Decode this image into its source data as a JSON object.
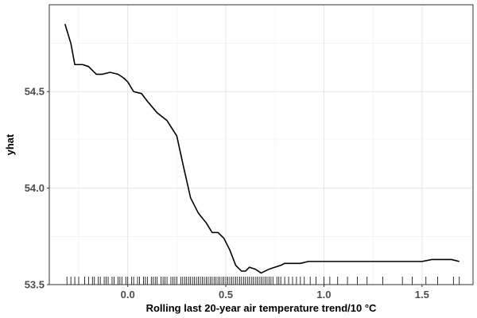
{
  "chart_data": {
    "type": "line",
    "xlabel": "Rolling last 20-year air temperature trend/10 °C",
    "ylabel": "yhat",
    "xlim": [
      -0.4,
      1.76
    ],
    "ylim": [
      53.5,
      54.95
    ],
    "x_ticks": [
      0.0,
      0.5,
      1.0,
      1.5
    ],
    "x_tick_labels": [
      "0.0",
      "0.5",
      "1.0",
      "1.5"
    ],
    "y_ticks": [
      53.5,
      54.0,
      54.5
    ],
    "y_tick_labels": [
      "53.5",
      "54.0",
      "54.5"
    ],
    "grid": true,
    "rug": true,
    "series": [
      {
        "x": [
          -0.32,
          -0.29,
          -0.27,
          -0.23,
          -0.2,
          -0.16,
          -0.13,
          -0.09,
          -0.05,
          -0.02,
          0.0,
          0.03,
          0.07,
          0.1,
          0.15,
          0.2,
          0.25,
          0.28,
          0.32,
          0.36,
          0.4,
          0.43,
          0.46,
          0.49,
          0.52,
          0.55,
          0.58,
          0.6,
          0.62,
          0.65,
          0.68,
          0.72,
          0.75,
          0.78,
          0.8,
          0.85,
          0.88,
          0.92,
          1.0,
          1.1,
          1.2,
          1.3,
          1.4,
          1.5,
          1.55,
          1.6,
          1.65,
          1.69
        ],
        "y": [
          54.85,
          54.75,
          54.64,
          54.64,
          54.63,
          54.59,
          54.59,
          54.6,
          54.59,
          54.57,
          54.55,
          54.5,
          54.49,
          54.45,
          54.39,
          54.35,
          54.27,
          54.13,
          53.95,
          53.87,
          53.82,
          53.77,
          53.77,
          53.74,
          53.68,
          53.6,
          53.57,
          53.57,
          53.59,
          53.58,
          53.56,
          53.58,
          53.59,
          53.6,
          53.61,
          53.61,
          53.61,
          53.62,
          53.62,
          53.62,
          53.62,
          53.62,
          53.62,
          53.62,
          53.63,
          53.63,
          53.63,
          53.62
        ]
      }
    ],
    "rug_x": [
      -0.31,
      -0.29,
      -0.27,
      -0.25,
      -0.22,
      -0.2,
      -0.18,
      -0.17,
      -0.15,
      -0.14,
      -0.12,
      -0.11,
      -0.1,
      -0.08,
      -0.07,
      -0.05,
      -0.04,
      -0.03,
      -0.01,
      0.0,
      0.02,
      0.03,
      0.05,
      0.06,
      0.08,
      0.09,
      0.1,
      0.12,
      0.13,
      0.14,
      0.15,
      0.17,
      0.18,
      0.19,
      0.2,
      0.22,
      0.23,
      0.24,
      0.25,
      0.27,
      0.28,
      0.29,
      0.3,
      0.31,
      0.32,
      0.33,
      0.34,
      0.35,
      0.36,
      0.37,
      0.38,
      0.39,
      0.4,
      0.41,
      0.42,
      0.43,
      0.44,
      0.45,
      0.46,
      0.47,
      0.48,
      0.49,
      0.5,
      0.51,
      0.52,
      0.53,
      0.54,
      0.55,
      0.56,
      0.57,
      0.58,
      0.59,
      0.6,
      0.61,
      0.62,
      0.63,
      0.64,
      0.65,
      0.66,
      0.67,
      0.68,
      0.69,
      0.7,
      0.71,
      0.72,
      0.73,
      0.74,
      0.76,
      0.77,
      0.78,
      0.8,
      0.82,
      0.84,
      0.86,
      0.88,
      0.9,
      0.93,
      0.96,
      1.0,
      1.03,
      1.07,
      1.12,
      1.17,
      1.22,
      1.3,
      1.4,
      1.45,
      1.52,
      1.58,
      1.66,
      1.69
    ]
  }
}
